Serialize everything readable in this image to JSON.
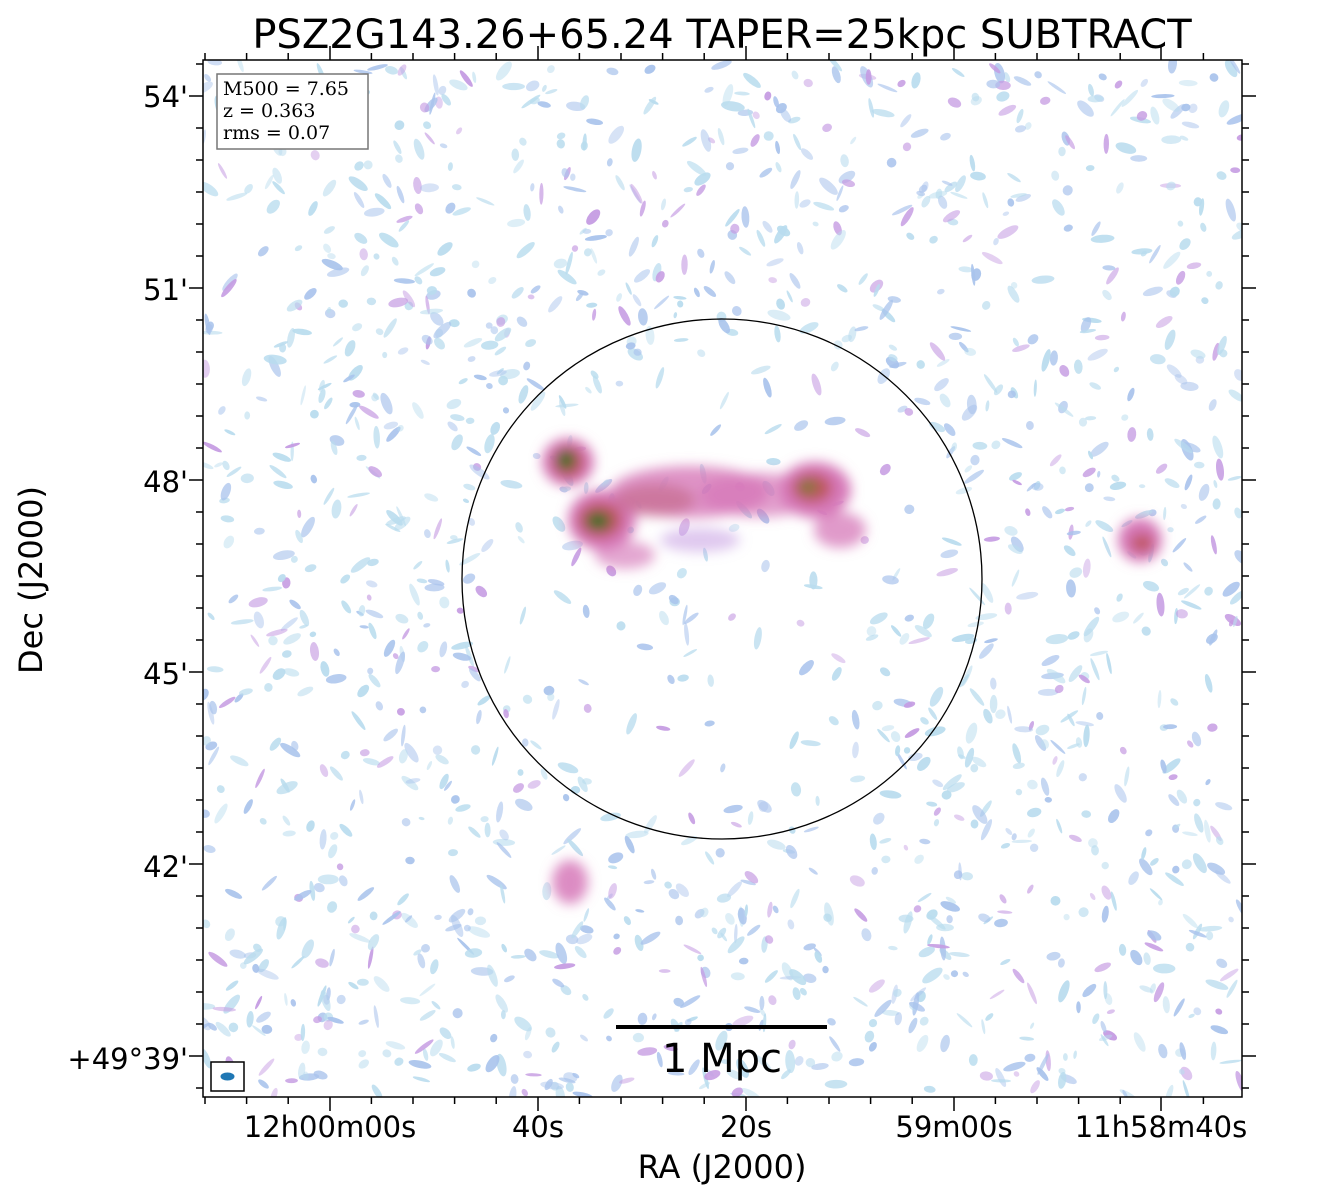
{
  "title": "PSZ2G143.26+65.24 TAPER=25kpc SUBTRACT",
  "axes": {
    "xlabel": "RA (J2000)",
    "ylabel": "Dec (J2000)",
    "xticks": [
      "12h00m00s",
      "40s",
      "20s",
      "59m00s",
      "11h58m40s"
    ],
    "yticks": [
      "54'",
      "51'",
      "48'",
      "45'",
      "42'",
      "+49°39'"
    ]
  },
  "info_box": {
    "lines": [
      "M500 = 7.65",
      "z = 0.363",
      "rms = 0.07"
    ]
  },
  "scale_bar": {
    "label": "1 Mpc"
  },
  "colors": {
    "noise_light": "#b9dcee",
    "noise_blue": "#a9c3ec",
    "noise_purple": "#c59be2",
    "emission_pink": "#d678b8",
    "emission_red": "#c0565e",
    "emission_olive": "#7c7a3a",
    "emission_green": "#2a6e26",
    "beam": "#1f77b4"
  }
}
